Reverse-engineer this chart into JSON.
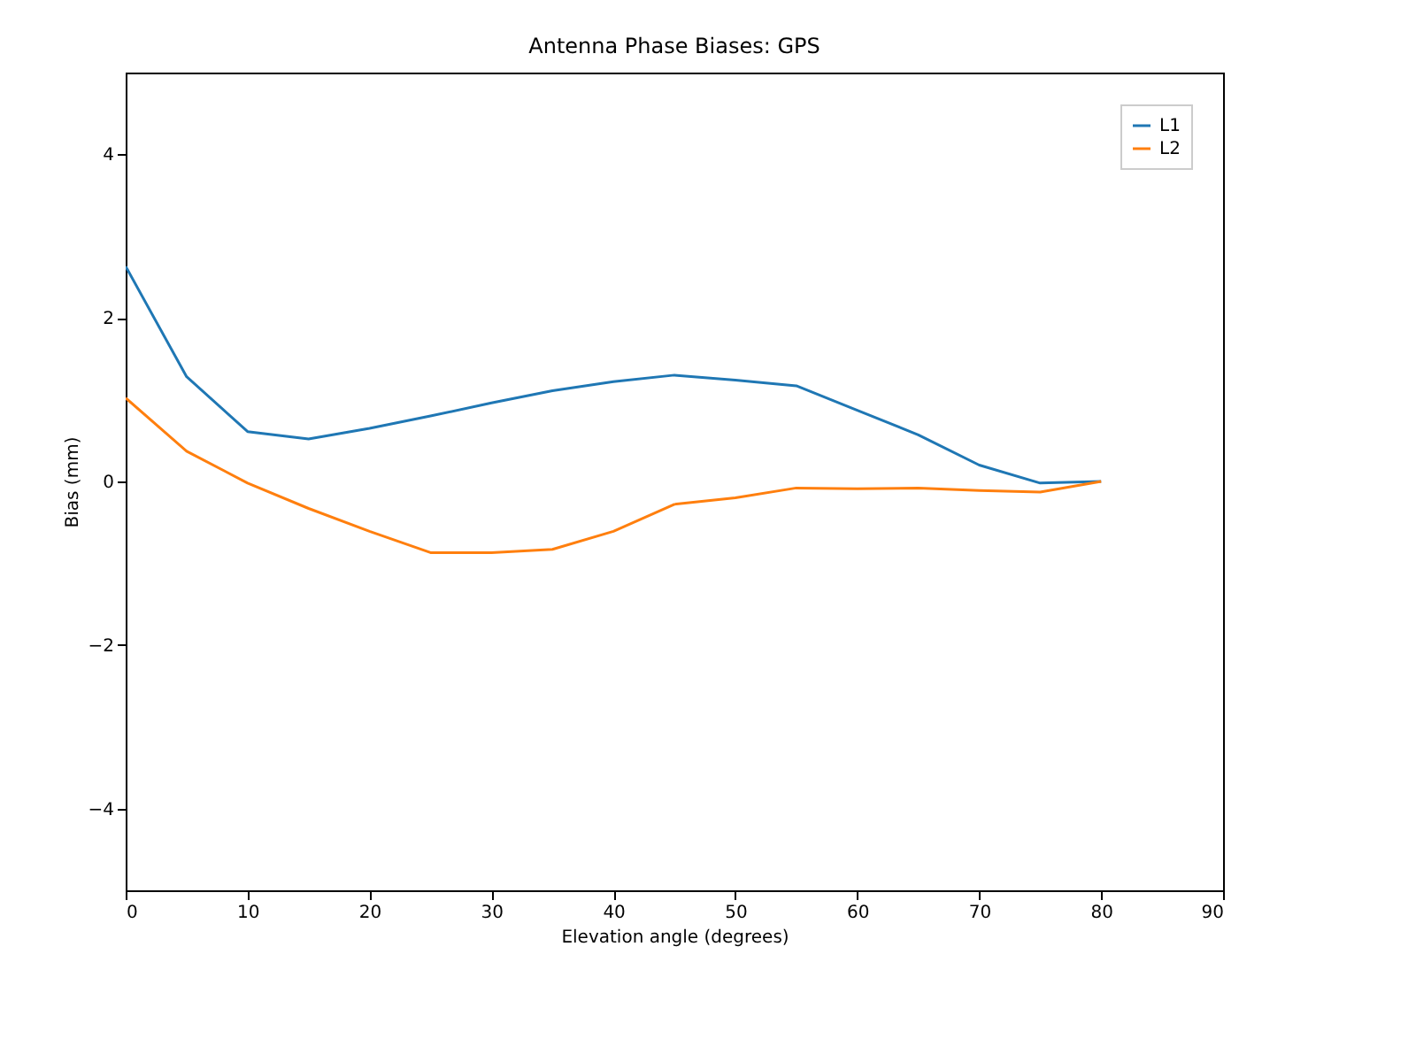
{
  "chart_data": {
    "type": "line",
    "title": "Antenna Phase Biases: GPS",
    "xlabel": "Elevation angle (degrees)",
    "ylabel": "Bias (mm)",
    "x": [
      0,
      5,
      10,
      15,
      20,
      25,
      30,
      35,
      40,
      45,
      50,
      55,
      60,
      65,
      70,
      75,
      80
    ],
    "series": [
      {
        "name": "L1",
        "color": "#1f77b4",
        "values": [
          2.63,
          1.28,
          0.61,
          0.52,
          0.65,
          0.8,
          0.96,
          1.11,
          1.22,
          1.3,
          1.24,
          1.17,
          0.87,
          0.57,
          0.2,
          -0.02,
          0
        ]
      },
      {
        "name": "L2",
        "color": "#ff7f0e",
        "values": [
          1.02,
          0.37,
          -0.02,
          -0.33,
          -0.61,
          -0.87,
          -0.87,
          -0.83,
          -0.61,
          -0.28,
          -0.2,
          -0.08,
          -0.09,
          -0.08,
          -0.11,
          -0.13,
          0
        ]
      }
    ],
    "xlim": [
      0,
      90
    ],
    "xticks": [
      0,
      10,
      20,
      30,
      40,
      50,
      60,
      70,
      80,
      90
    ],
    "ylim": [
      -5,
      5
    ],
    "yticks": [
      {
        "value": -4,
        "label": "−4"
      },
      {
        "value": -2,
        "label": "−2"
      },
      0,
      2,
      4
    ],
    "grid": false,
    "legend": "top right",
    "marker": "none",
    "line_style": "solid"
  }
}
